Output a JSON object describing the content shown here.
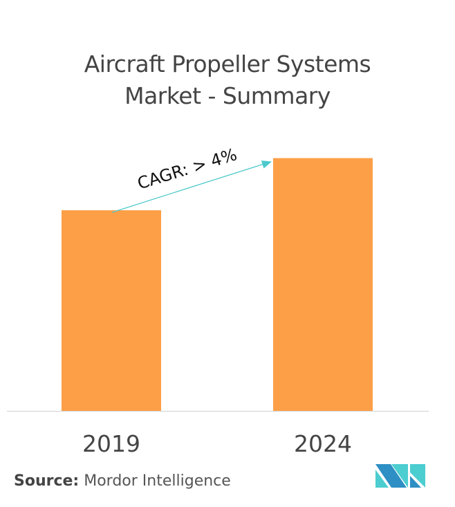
{
  "chart_data": {
    "type": "bar",
    "title": "Aircraft Propeller Systems Market  - Summary",
    "title_lines": [
      "Aircraft Propeller Systems",
      "Market  - Summary"
    ],
    "categories": [
      "2019",
      "2024"
    ],
    "values": [
      1.0,
      1.26
    ],
    "xlabel": "",
    "ylabel": "",
    "grid": false,
    "bar_color": "#FD9F47",
    "annotation": {
      "text": "CAGR: > 4%",
      "arrow_color": "#4CC9CC"
    }
  },
  "source": {
    "label": "Source:",
    "text": "Mordor Intelligence"
  },
  "logo": {
    "colors": [
      "#2D8FC4",
      "#4CCDD0"
    ]
  }
}
